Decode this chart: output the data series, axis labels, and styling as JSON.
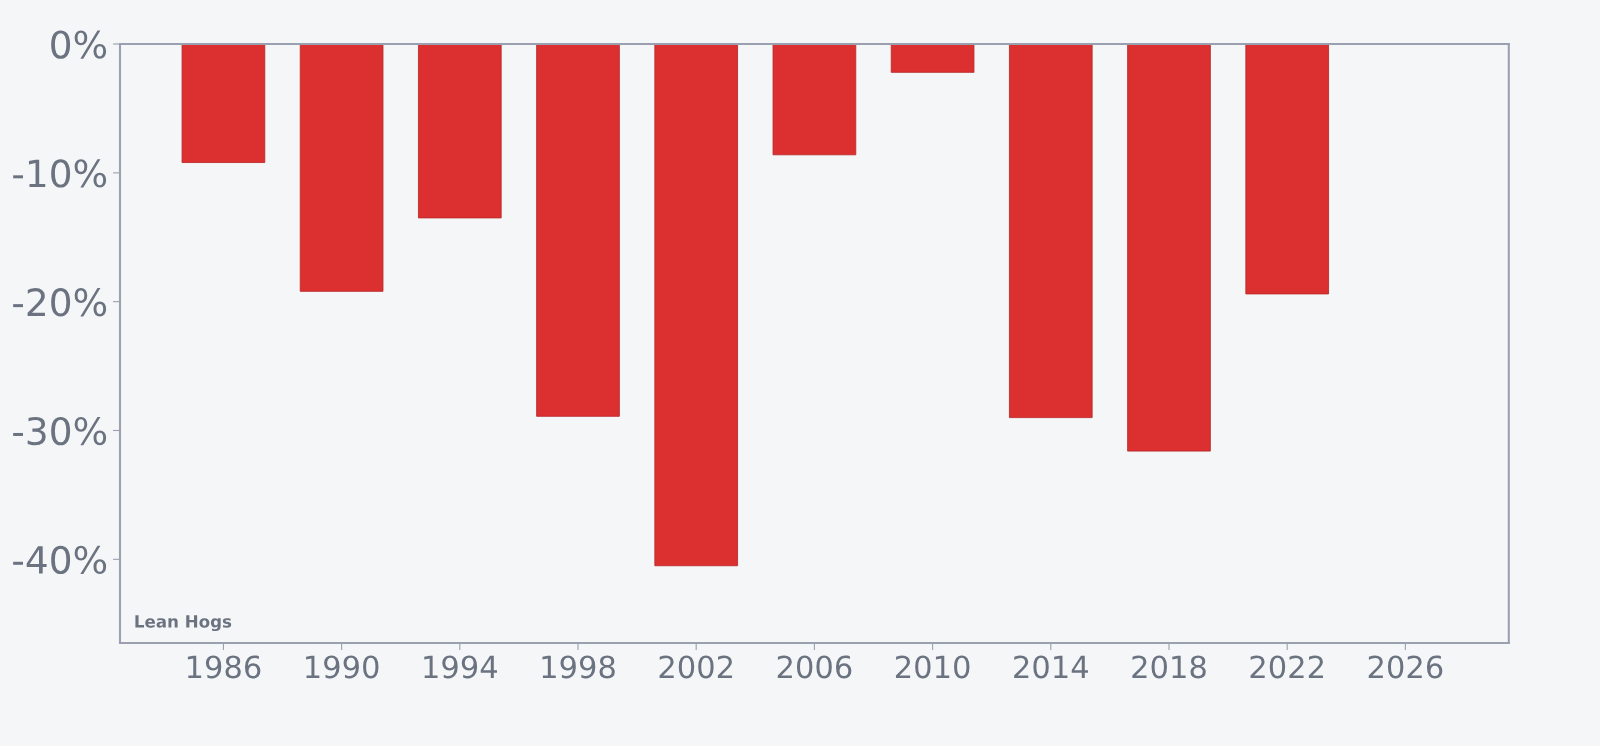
{
  "chart_data": {
    "type": "bar",
    "x": [
      1986,
      1990,
      1994,
      1998,
      2002,
      2006,
      2010,
      2014,
      2018,
      2022
    ],
    "values": [
      -9.2,
      -19.2,
      -13.5,
      -28.9,
      -40.5,
      -8.6,
      -2.2,
      -29.0,
      -31.6,
      -19.4
    ],
    "color": "#dc3030",
    "xlim": [
      1982.5,
      2029.5
    ],
    "xticks": [
      1986,
      1990,
      1994,
      1998,
      2002,
      2006,
      2010,
      2014,
      2018,
      2022,
      2026
    ],
    "ylim": [
      -46.5,
      0
    ],
    "yticks": [
      {
        "value": 0,
        "label": "0%"
      },
      {
        "value": -10,
        "label": "-10%"
      },
      {
        "value": -20,
        "label": "-20%"
      },
      {
        "value": -30,
        "label": "-30%"
      },
      {
        "value": -40,
        "label": "-40%"
      }
    ],
    "grid": false,
    "annotations": [
      "Lean Hogs"
    ]
  }
}
